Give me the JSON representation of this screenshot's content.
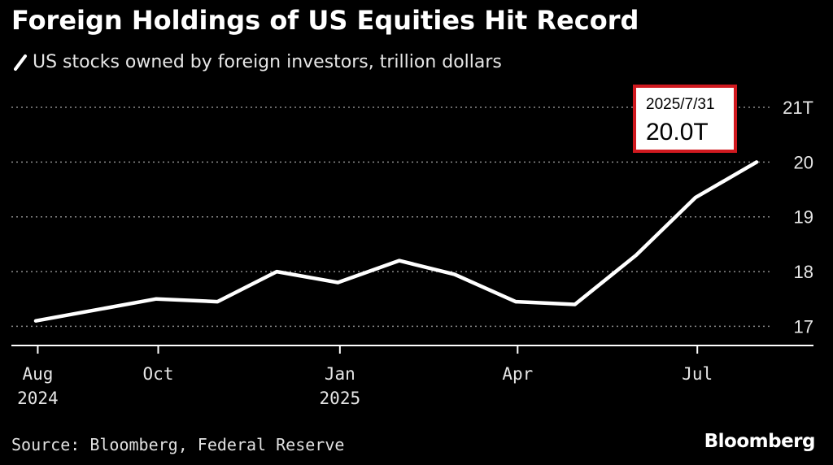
{
  "header": {
    "title": "Foreign Holdings of US Equities Hit Record",
    "subtitle": "US stocks owned by foreign investors, trillion dollars"
  },
  "footer": {
    "source": "Source: Bloomberg, Federal Reserve",
    "brand": "Bloomberg"
  },
  "callout": {
    "date": "2025/7/31",
    "value": "20.0T"
  },
  "colors": {
    "background": "#000000",
    "line": "#ffffff",
    "callout_border": "#d0191f"
  },
  "chart_data": {
    "type": "line",
    "title": "Foreign Holdings of US Equities Hit Record",
    "subtitle": "US stocks owned by foreign investors, trillion dollars",
    "xlabel": "",
    "ylabel": "",
    "series": [
      {
        "name": "US stocks owned by foreign investors",
        "x": [
          "2024-07-31",
          "2024-09-30",
          "2024-10-31",
          "2024-11-30",
          "2024-12-31",
          "2025-01-31",
          "2025-02-28",
          "2025-03-31",
          "2025-04-30",
          "2025-05-31",
          "2025-06-30",
          "2025-07-31"
        ],
        "values": [
          17.1,
          17.5,
          17.45,
          18.0,
          17.8,
          18.2,
          17.95,
          17.45,
          17.4,
          18.3,
          19.35,
          20.0
        ]
      }
    ],
    "x_ticks": [
      {
        "date": "2024-08-01",
        "label": "Aug",
        "year": "2024"
      },
      {
        "date": "2024-10-01",
        "label": "Oct",
        "year": ""
      },
      {
        "date": "2025-01-01",
        "label": "Jan",
        "year": "2025"
      },
      {
        "date": "2025-04-01",
        "label": "Apr",
        "year": ""
      },
      {
        "date": "2025-07-01",
        "label": "Jul",
        "year": ""
      }
    ],
    "y_ticks": [
      {
        "value": 17,
        "label": "17"
      },
      {
        "value": 18,
        "label": "18"
      },
      {
        "value": 19,
        "label": "19"
      },
      {
        "value": 20,
        "label": "20"
      },
      {
        "value": 21,
        "label": "21T"
      }
    ],
    "ylim": [
      16.65,
      21
    ],
    "xlim": [
      "2024-07-31",
      "2025-09-04"
    ],
    "grid": "horizontal-dotted",
    "axis_position": "right"
  }
}
